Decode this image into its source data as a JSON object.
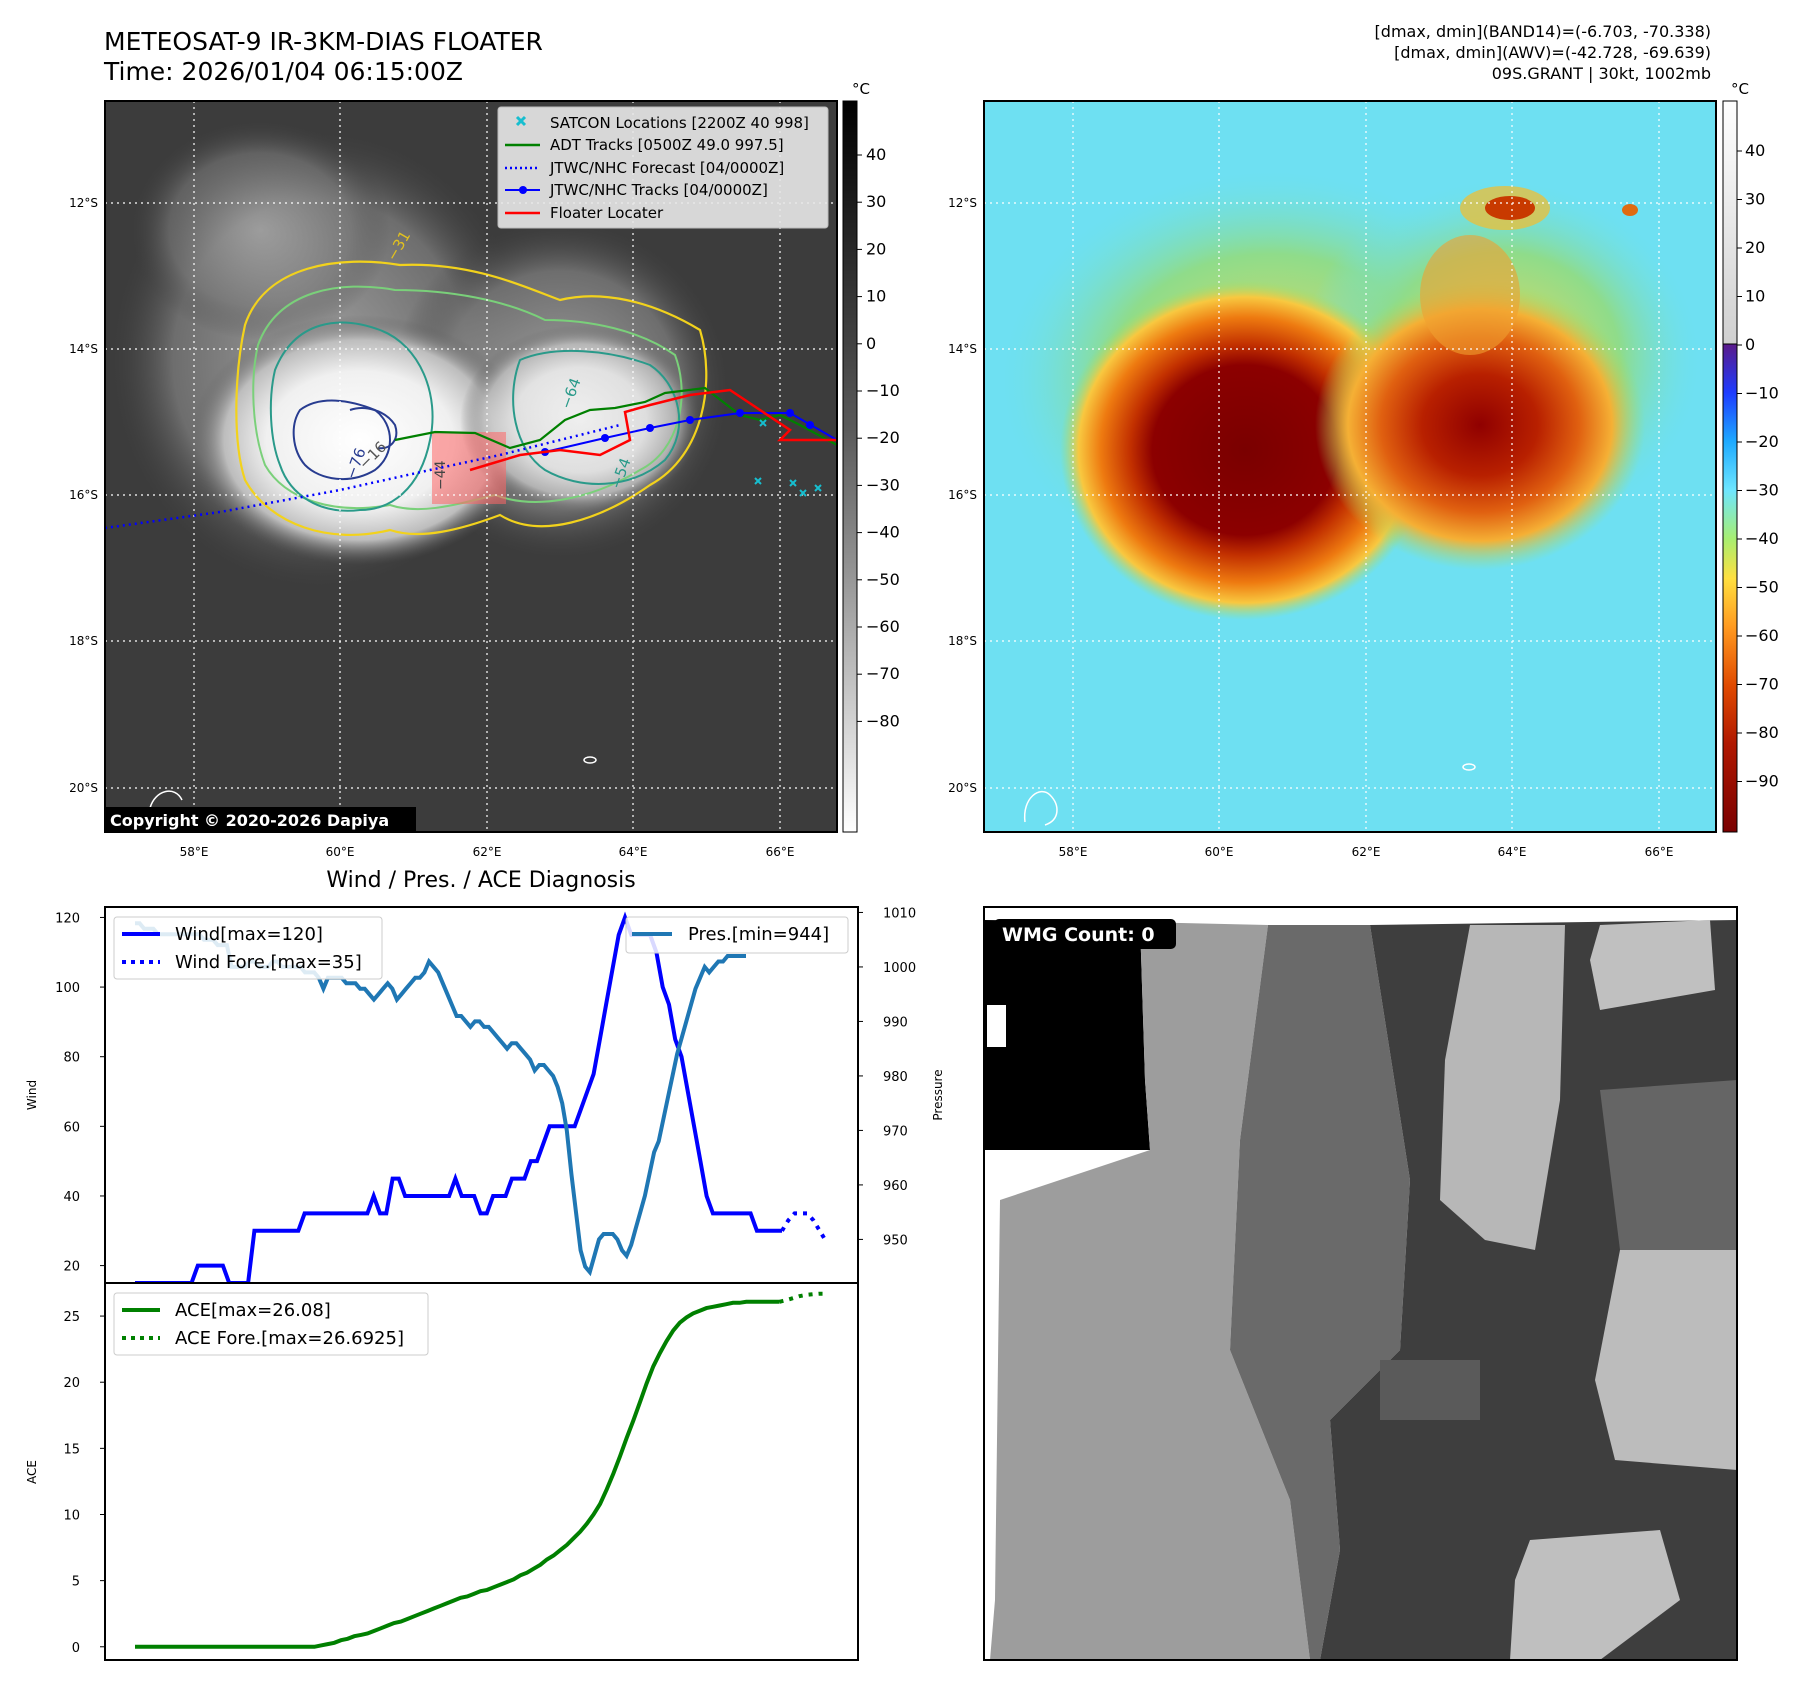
{
  "header": {
    "title_line1": "METEOSAT-9 IR-3KM-DIAS FLOATER",
    "title_line2": "Time: 2026/01/04 06:15:00Z",
    "info_line1": "[dmax, dmin](BAND14)=(-6.703, -70.338)",
    "info_line2": "[dmax, dmin](AWV)=(-42.728, -69.639)",
    "info_line3": "09S.GRANT | 30kt, 1002mb"
  },
  "ir_panel": {
    "colorbar_unit": "°C",
    "colorbar_ticks": [
      "40",
      "30",
      "20",
      "10",
      "0",
      "−10",
      "−20",
      "−30",
      "−40",
      "−50",
      "−60",
      "−70",
      "−80"
    ],
    "lat_labels": [
      "12°S",
      "14°S",
      "16°S",
      "18°S",
      "20°S"
    ],
    "lon_labels": [
      "58°E",
      "60°E",
      "62°E",
      "64°E",
      "66°E"
    ],
    "contour_labels": [
      "−31",
      "−16",
      "−76",
      "−54",
      "−64",
      "−44"
    ],
    "copyright": "Copyright © 2020-2026 Dapiya",
    "legend": [
      {
        "label": "SATCON Locations [2200Z 40 998]",
        "color": "#17becf",
        "style": "x"
      },
      {
        "label": "ADT Tracks [0500Z 49.0 997.5]",
        "color": "#008000",
        "style": "line"
      },
      {
        "label": "JTWC/NHC Forecast [04/0000Z]",
        "color": "#0000ff",
        "style": "dotted"
      },
      {
        "label": "JTWC/NHC Tracks [04/0000Z]",
        "color": "#0000ff",
        "style": "line-dot"
      },
      {
        "label": "Floater Locater",
        "color": "#ff0000",
        "style": "line"
      }
    ]
  },
  "enhanced_panel": {
    "colorbar_unit": "°C",
    "colorbar_ticks": [
      "40",
      "30",
      "20",
      "10",
      "0",
      "−10",
      "−20",
      "−30",
      "−40",
      "−50",
      "−60",
      "−70",
      "−80",
      "−90"
    ],
    "lat_labels": [
      "12°S",
      "14°S",
      "16°S",
      "18°S",
      "20°S"
    ],
    "lon_labels": [
      "58°E",
      "60°E",
      "62°E",
      "64°E",
      "66°E"
    ]
  },
  "wmg_panel": {
    "badge": "WMG Count: 0"
  },
  "chart_data": [
    {
      "type": "line",
      "title": "Wind / Pres. / ACE Diagnosis",
      "ylabel": "Wind",
      "ylabel_right": "Pressure",
      "ylim": [
        15,
        123
      ],
      "ylim_right": [
        942,
        1011
      ],
      "yticks": [
        20,
        40,
        60,
        80,
        100,
        120
      ],
      "yticks_right": [
        950,
        960,
        970,
        980,
        990,
        1000,
        1010
      ],
      "legend_left": [
        "Wind[max=120]",
        "Wind Fore.[max=35]"
      ],
      "legend_right": [
        "Pres.[min=944]"
      ],
      "series": [
        {
          "name": "Wind",
          "color": "#0000ff",
          "style": "solid",
          "values": [
            15,
            15,
            15,
            15,
            15,
            15,
            15,
            15,
            15,
            15,
            20,
            20,
            20,
            20,
            20,
            15,
            15,
            15,
            15,
            30,
            30,
            30,
            30,
            30,
            30,
            30,
            30,
            35,
            35,
            35,
            35,
            35,
            35,
            35,
            35,
            35,
            35,
            35,
            40,
            35,
            35,
            45,
            45,
            40,
            40,
            40,
            40,
            40,
            40,
            40,
            40,
            45,
            40,
            40,
            40,
            35,
            35,
            40,
            40,
            40,
            45,
            45,
            45,
            50,
            50,
            55,
            60,
            60,
            60,
            60,
            60,
            65,
            70,
            75,
            85,
            95,
            105,
            115,
            120,
            115,
            115,
            115,
            115,
            110,
            100,
            95,
            85,
            80,
            70,
            60,
            50,
            40,
            35,
            35,
            35,
            35,
            35,
            35,
            35,
            30,
            30,
            30,
            30,
            30
          ]
        },
        {
          "name": "Wind Fore.",
          "color": "#0000ff",
          "style": "dotted",
          "x_start": 103,
          "values": [
            30,
            33,
            35,
            35,
            35,
            33,
            30,
            27
          ]
        },
        {
          "name": "Pres.",
          "color": "#1f77b4",
          "style": "solid",
          "axis": "right",
          "values": [
            1008,
            1008,
            1007,
            1007,
            1007,
            1006,
            1006,
            1006,
            1006,
            1006,
            1006,
            1006,
            1006,
            1006,
            1006,
            1005,
            1005,
            1005,
            1004,
            1004,
            1004,
            1000,
            1000,
            1000,
            1000,
            1001,
            1001,
            1000,
            1000,
            1000,
            1001,
            1001,
            1000,
            1000,
            1000,
            1000,
            1000,
            999,
            999,
            999,
            998,
            996,
            998,
            998,
            998,
            998,
            997,
            997,
            997,
            996,
            996,
            995,
            994,
            995,
            996,
            997,
            996,
            994,
            995,
            996,
            997,
            998,
            998,
            999,
            1001,
            1000,
            999,
            997,
            995,
            993,
            991,
            991,
            990,
            989,
            990,
            990,
            989,
            989,
            988,
            987,
            986,
            985,
            986,
            986,
            985,
            984,
            983,
            981,
            982,
            982,
            981,
            980,
            978,
            975,
            970,
            962,
            955,
            948,
            945,
            944,
            947,
            950,
            951,
            951,
            951,
            950,
            948,
            947,
            949,
            952,
            955,
            958,
            962,
            966,
            968,
            972,
            976,
            980,
            984,
            987,
            990,
            993,
            996,
            998,
            1000,
            999,
            1000,
            1001,
            1001,
            1002,
            1002,
            1002,
            1002,
            1002
          ]
        }
      ]
    },
    {
      "type": "line",
      "ylabel": "ACE",
      "ylim": [
        -1,
        27.5
      ],
      "yticks": [
        0,
        5,
        10,
        15,
        20,
        25
      ],
      "legend_left": [
        "ACE[max=26.08]",
        "ACE Fore.[max=26.6925]"
      ],
      "series": [
        {
          "name": "ACE",
          "color": "#008000",
          "style": "solid",
          "values": [
            0,
            0,
            0,
            0,
            0,
            0,
            0,
            0,
            0,
            0,
            0,
            0,
            0,
            0,
            0,
            0,
            0,
            0,
            0,
            0,
            0,
            0,
            0,
            0,
            0,
            0,
            0,
            0,
            0.1,
            0.2,
            0.3,
            0.5,
            0.6,
            0.8,
            0.9,
            1.0,
            1.2,
            1.4,
            1.6,
            1.8,
            1.9,
            2.1,
            2.3,
            2.5,
            2.7,
            2.9,
            3.1,
            3.3,
            3.5,
            3.7,
            3.8,
            4.0,
            4.2,
            4.3,
            4.5,
            4.7,
            4.9,
            5.1,
            5.4,
            5.6,
            5.9,
            6.2,
            6.6,
            6.9,
            7.3,
            7.7,
            8.2,
            8.7,
            9.3,
            10.0,
            10.8,
            11.9,
            13.1,
            14.4,
            15.8,
            17.1,
            18.5,
            19.9,
            21.2,
            22.2,
            23.1,
            23.9,
            24.5,
            24.9,
            25.2,
            25.4,
            25.6,
            25.7,
            25.8,
            25.9,
            26.0,
            26.0,
            26.08,
            26.08,
            26.08,
            26.08,
            26.08,
            26.08
          ]
        },
        {
          "name": "ACE Fore.",
          "color": "#008000",
          "style": "dotted",
          "values": [
            26.08,
            26.2,
            26.35,
            26.5,
            26.6,
            26.65,
            26.69,
            26.69
          ]
        }
      ]
    }
  ]
}
